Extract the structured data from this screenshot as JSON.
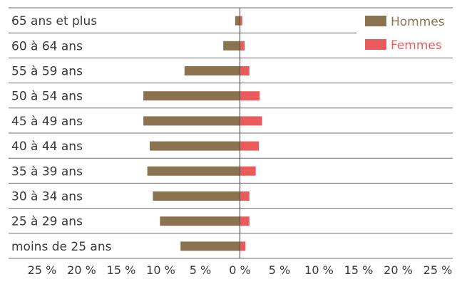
{
  "chart_data": {
    "type": "bar",
    "orientation": "horizontal",
    "layout": "population-pyramid",
    "categories": [
      "65 ans et plus",
      "60 à 64 ans",
      "55 à 59 ans",
      "50 à 54 ans",
      "45 à 49 ans",
      "40 à 44 ans",
      "35 à 39 ans",
      "30 à 34 ans",
      "25 à 29 ans",
      "moins de 25 ans"
    ],
    "series": [
      {
        "name": "Hommes",
        "color": "#8b7350",
        "side": "left",
        "values": [
          0.6,
          2.1,
          7.0,
          12.2,
          12.2,
          11.4,
          11.7,
          11.0,
          10.1,
          7.5
        ]
      },
      {
        "name": "Femmes",
        "color": "#ec5b5b",
        "side": "right",
        "values": [
          0.3,
          0.6,
          1.2,
          2.5,
          2.8,
          2.4,
          2.0,
          1.2,
          1.2,
          0.7
        ]
      }
    ],
    "xlim": [
      -25,
      25
    ],
    "xticks": [
      -25,
      -20,
      -15,
      -10,
      -5,
      0,
      5,
      10,
      15,
      20,
      25
    ],
    "tick_labels": [
      "25 %",
      "20 %",
      "15 %",
      "10 %",
      "5 %",
      "0 %",
      "5 %",
      "10 %",
      "15 %",
      "20 %",
      "25 %"
    ],
    "legend": {
      "position": "top-right",
      "entries": [
        "Hommes",
        "Femmes"
      ]
    },
    "title": "",
    "xlabel": "",
    "ylabel": ""
  }
}
